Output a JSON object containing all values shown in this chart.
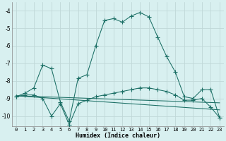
{
  "xlabel": "Humidex (Indice chaleur)",
  "bg_color": "#d8f0f0",
  "grid_color": "#c0d8d8",
  "line_color": "#1a6e64",
  "xlim": [
    -0.5,
    23.5
  ],
  "ylim": [
    -10.6,
    -3.5
  ],
  "yticks": [
    -10,
    -9,
    -8,
    -7,
    -6,
    -5,
    -4
  ],
  "xticks": [
    0,
    1,
    2,
    3,
    4,
    5,
    6,
    7,
    8,
    9,
    10,
    11,
    12,
    13,
    14,
    15,
    16,
    17,
    18,
    19,
    20,
    21,
    22,
    23
  ],
  "curve1_x": [
    0,
    1,
    2,
    3,
    4,
    5,
    6,
    7,
    8,
    9,
    10,
    11,
    12,
    13,
    14,
    15,
    16,
    17,
    18,
    19,
    20,
    21,
    22,
    23
  ],
  "curve1_y": [
    -8.9,
    -8.7,
    -8.4,
    -7.1,
    -7.3,
    -9.2,
    -10.3,
    -7.85,
    -7.65,
    -6.0,
    -4.55,
    -4.45,
    -4.65,
    -4.3,
    -4.1,
    -4.35,
    -5.5,
    -6.6,
    -7.5,
    -8.9,
    -9.0,
    -8.5,
    -8.5,
    -10.1
  ],
  "curve2_x": [
    0,
    1,
    2,
    3,
    4,
    5,
    6,
    7,
    8,
    9,
    10,
    11,
    12,
    13,
    14,
    15,
    16,
    17,
    18,
    19,
    20,
    21,
    22,
    23
  ],
  "curve2_y": [
    -8.9,
    -8.8,
    -8.8,
    -9.0,
    -10.0,
    -9.3,
    -10.5,
    -9.3,
    -9.1,
    -8.9,
    -8.8,
    -8.7,
    -8.6,
    -8.5,
    -8.4,
    -8.4,
    -8.5,
    -8.6,
    -8.8,
    -9.1,
    -9.1,
    -9.0,
    -9.5,
    -10.1
  ],
  "curve3_x": [
    0,
    23
  ],
  "curve3_y": [
    -8.85,
    -9.25
  ],
  "curve4_x": [
    0,
    23
  ],
  "curve4_y": [
    -8.85,
    -9.65
  ]
}
